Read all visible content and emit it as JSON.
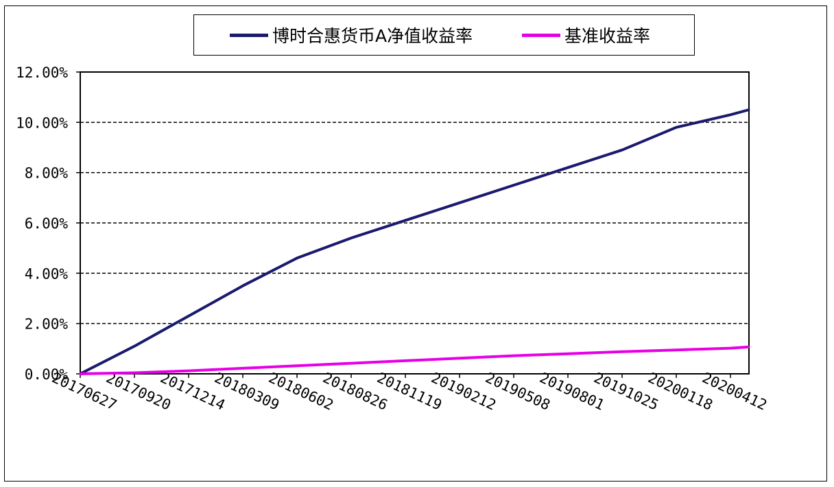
{
  "chart_data": {
    "type": "line",
    "title": "",
    "xlabel": "",
    "ylabel": "",
    "ylim": [
      0,
      12
    ],
    "yticks": [
      "0.00%",
      "2.00%",
      "4.00%",
      "6.00%",
      "8.00%",
      "10.00%",
      "12.00%"
    ],
    "grid": true,
    "legend_position": "top",
    "categories": [
      "20170627",
      "20170920",
      "20171214",
      "20180309",
      "20180602",
      "20180826",
      "20181119",
      "20190212",
      "20190508",
      "20190801",
      "20191025",
      "20200118",
      "20200412"
    ],
    "series": [
      {
        "name": "博时合惠货币A净值收益率",
        "color": "#1a1a6e",
        "x": [
          "20170627",
          "20170920",
          "20171214",
          "20180309",
          "20180602",
          "20180826",
          "20181119",
          "20190212",
          "20190508",
          "20190801",
          "20191025",
          "20200118",
          "20200412",
          "20200511"
        ],
        "values": [
          0.0,
          1.1,
          2.3,
          3.5,
          4.6,
          5.4,
          6.1,
          6.8,
          7.5,
          8.2,
          8.9,
          9.8,
          10.3,
          10.5
        ]
      },
      {
        "name": "基准收益率",
        "color": "#e600e6",
        "x": [
          "20170627",
          "20170920",
          "20171214",
          "20180309",
          "20180602",
          "20180826",
          "20181119",
          "20190212",
          "20190508",
          "20190801",
          "20191025",
          "20200118",
          "20200412",
          "20200511"
        ],
        "values": [
          0.0,
          0.04,
          0.12,
          0.22,
          0.32,
          0.42,
          0.52,
          0.62,
          0.72,
          0.8,
          0.88,
          0.95,
          1.02,
          1.07
        ]
      }
    ]
  }
}
